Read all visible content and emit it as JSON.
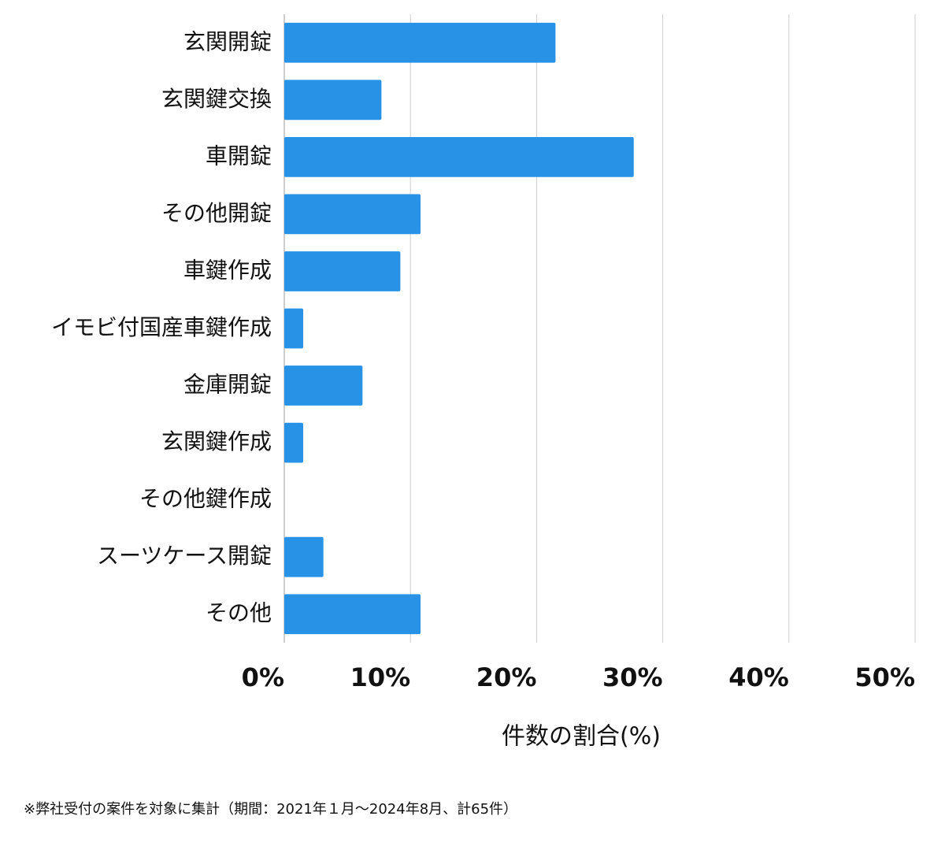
{
  "chart_data": {
    "type": "bar",
    "orientation": "horizontal",
    "categories": [
      "玄関開錠",
      "玄関鍵交換",
      "車開錠",
      "その他開錠",
      "車鍵作成",
      "イモビ付国産車鍵作成",
      "金庫開錠",
      "玄関鍵作成",
      "その他鍵作成",
      "スーツケース開錠",
      "その他"
    ],
    "values": [
      21.5,
      7.7,
      27.7,
      10.8,
      9.2,
      1.5,
      6.2,
      1.5,
      0,
      3.1,
      10.8
    ],
    "color": "#2893e6",
    "xlim": [
      0,
      50
    ],
    "xticks": [
      {
        "value": 0,
        "label": "0%"
      },
      {
        "value": 10,
        "label": "10%"
      },
      {
        "value": 20,
        "label": "20%"
      },
      {
        "value": 30,
        "label": "30%"
      },
      {
        "value": 40,
        "label": "40%"
      },
      {
        "value": 50,
        "label": "50%"
      }
    ],
    "grid": true,
    "x_label": "件数の割合(%)",
    "footnote": "※弊社受付の案件を対象に集計（期間：2021年１月〜2024年8月、計65件）"
  }
}
